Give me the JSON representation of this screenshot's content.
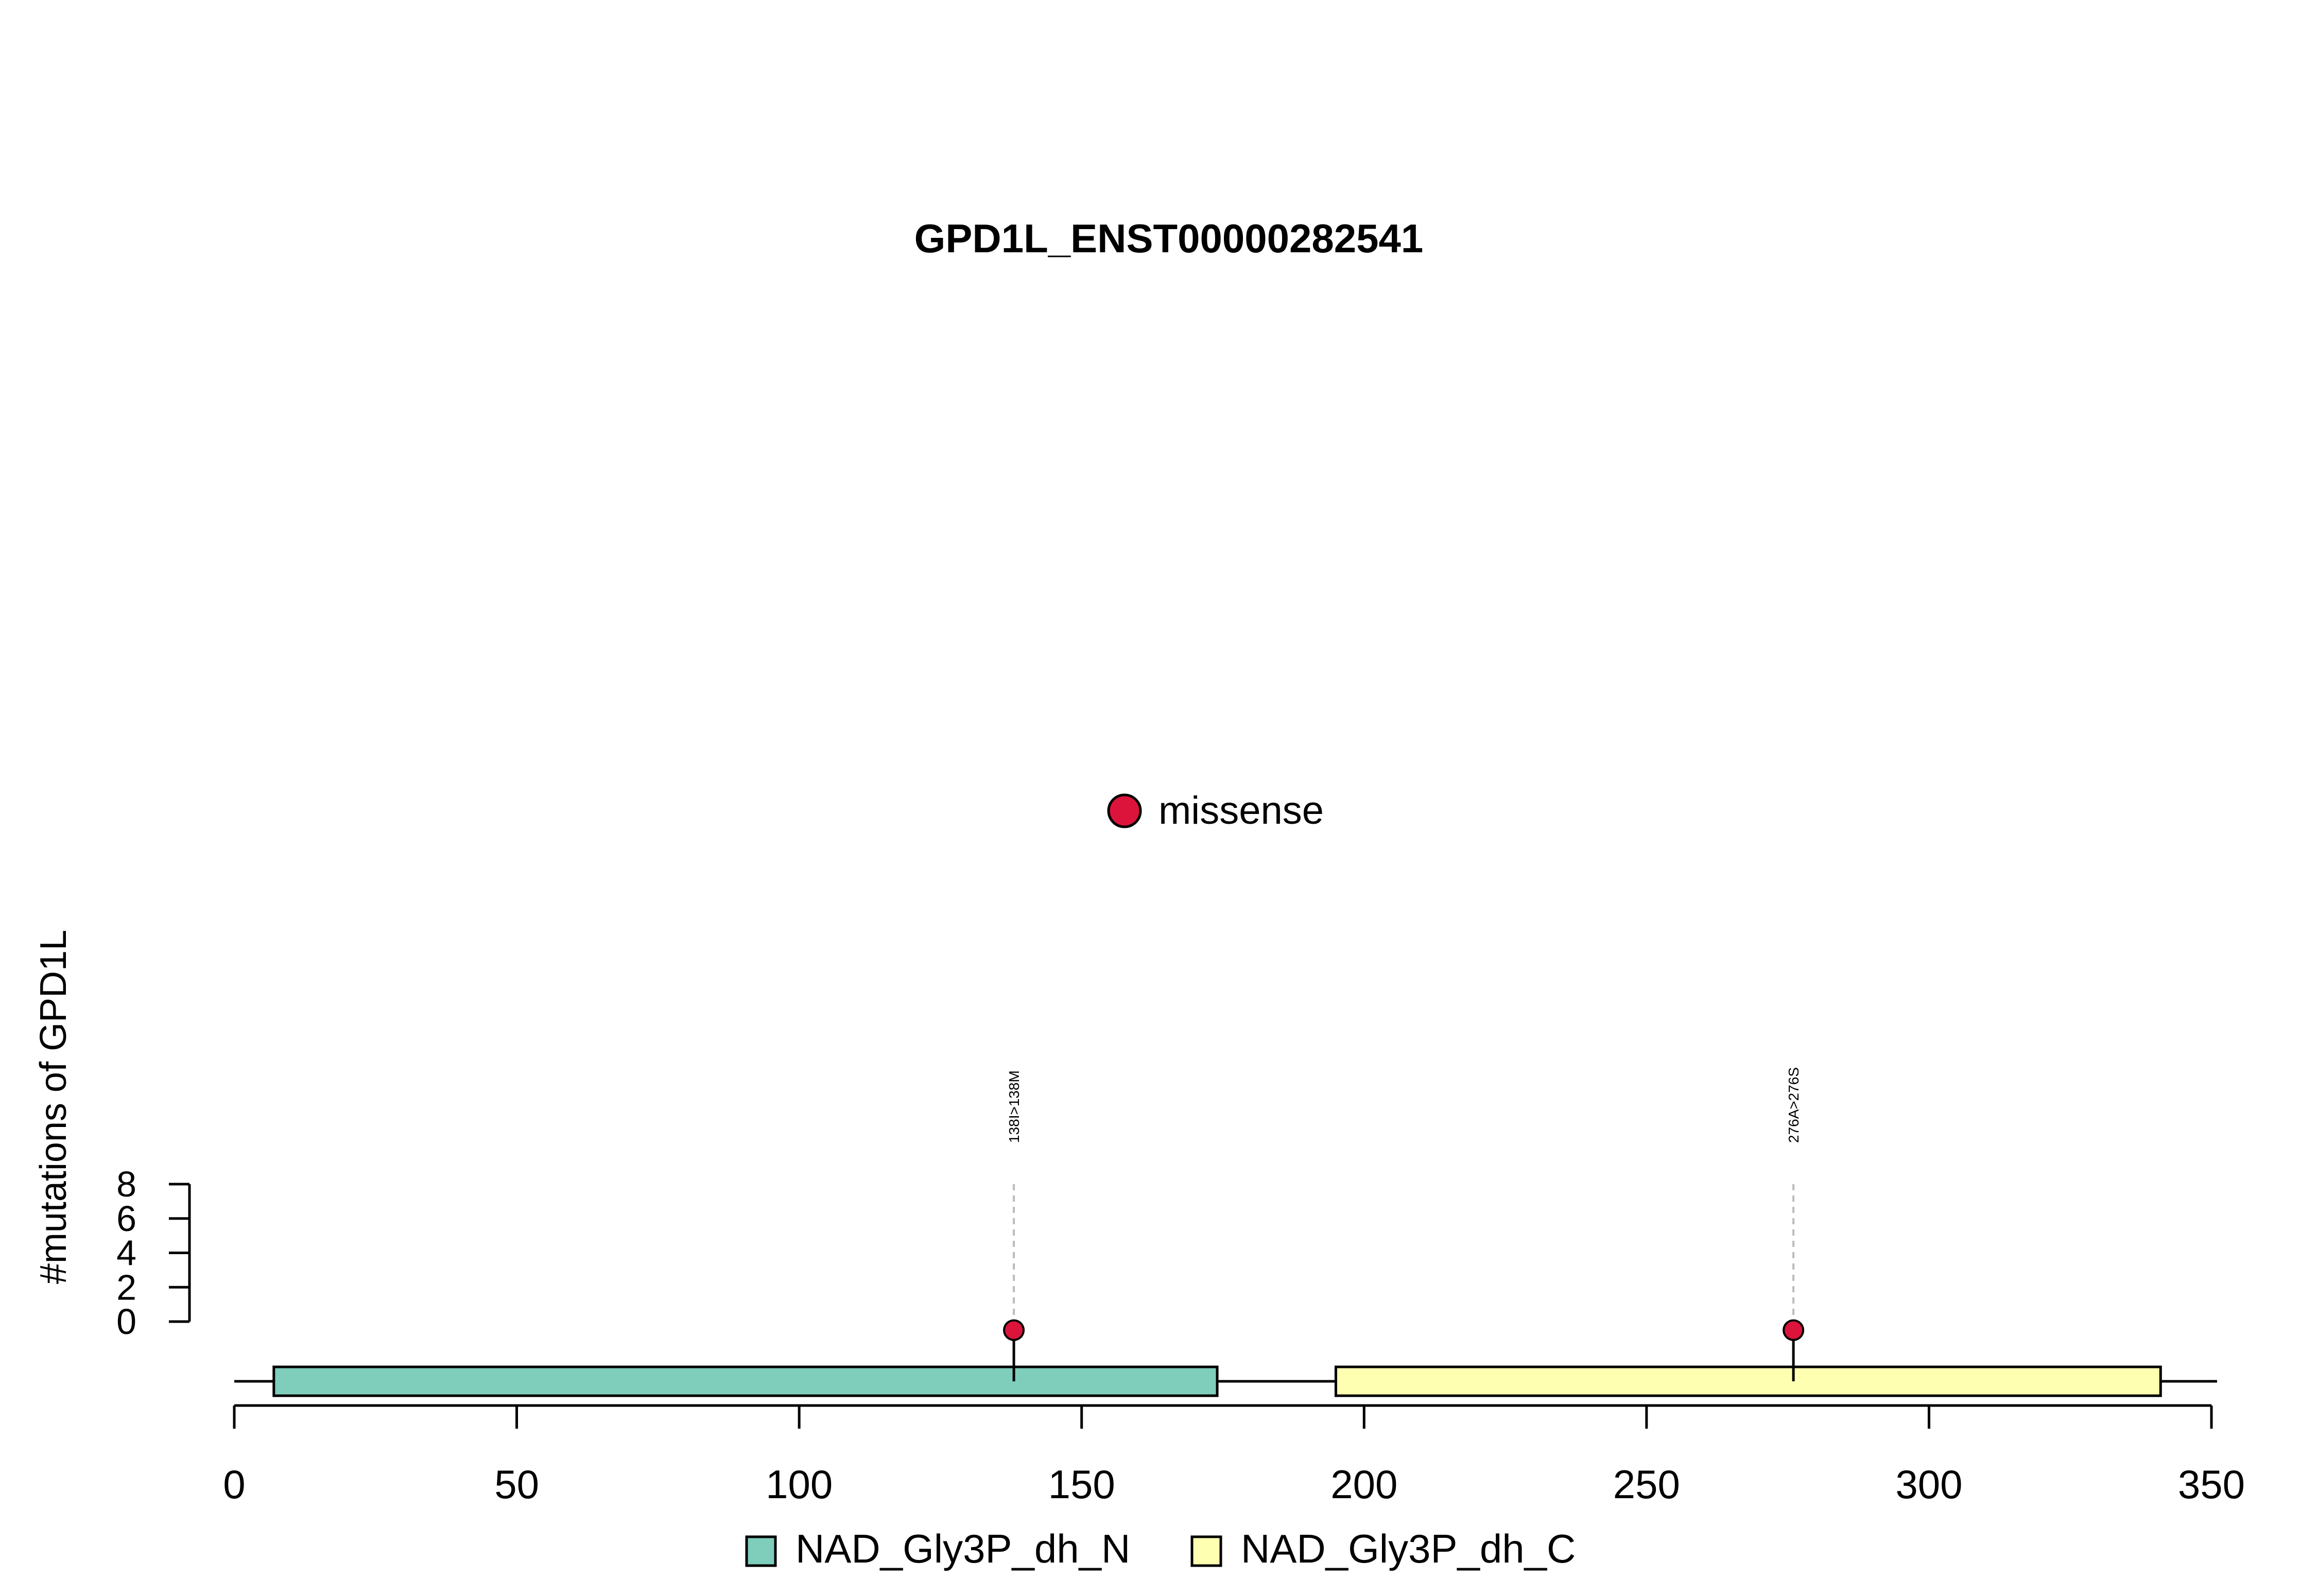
{
  "chart_data": {
    "type": "lollipop",
    "title": "GPD1L_ENST00000282541",
    "ylabel": "#mutations of GPD1L",
    "xlim": [
      0,
      350
    ],
    "x_ticks": [
      0,
      50,
      100,
      150,
      200,
      250,
      300,
      350
    ],
    "ylim": [
      0,
      8
    ],
    "y_ticks": [
      0,
      2,
      4,
      6,
      8
    ],
    "protein_length": 351,
    "mutation_legend": [
      {
        "label": "missense",
        "color": "#DC143C"
      }
    ],
    "mutations": [
      {
        "position": 138,
        "count": 1,
        "label": "138I>138M",
        "type": "missense"
      },
      {
        "position": 276,
        "count": 1,
        "label": "276A>276S",
        "type": "missense"
      }
    ],
    "domains": [
      {
        "name": "NAD_Gly3P_dh_N",
        "start": 7,
        "end": 174,
        "color": "#7FCDBB"
      },
      {
        "name": "NAD_Gly3P_dh_C",
        "start": 195,
        "end": 341,
        "color": "#FFFFB2"
      }
    ]
  }
}
